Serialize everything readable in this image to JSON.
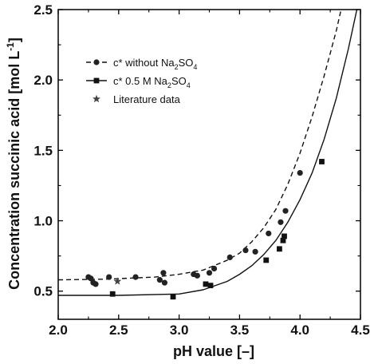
{
  "chart_data": {
    "type": "scatter",
    "xlabel": "pH value [–]",
    "ylabel": "Concentration succinic acid [mol L",
    "ylabel_sup": "-1",
    "ylabel_end": "]",
    "xlim": [
      2.0,
      4.5
    ],
    "ylim": [
      0.3,
      2.5
    ],
    "xticks": [
      "2.0",
      "2.5",
      "3.0",
      "3.5",
      "4.0",
      "4.5"
    ],
    "yticks": [
      "0.5",
      "1.0",
      "1.5",
      "2.0",
      "2.5"
    ],
    "legend_position": "top-left",
    "legend": [
      {
        "pre": "c* without Na",
        "sub1": "2",
        "mid": "SO",
        "sub2": "4"
      },
      {
        "pre": "c* 0.5 M Na",
        "sub1": "2",
        "mid": "SO",
        "sub2": "4"
      },
      {
        "pre": "Literature data",
        "sub1": "",
        "mid": "",
        "sub2": ""
      }
    ],
    "series": [
      {
        "marker": "circle",
        "line": "dashed",
        "points": [
          [
            2.25,
            0.6
          ],
          [
            2.27,
            0.59
          ],
          [
            2.29,
            0.56
          ],
          [
            2.31,
            0.55
          ],
          [
            2.42,
            0.6
          ],
          [
            2.64,
            0.6
          ],
          [
            2.84,
            0.58
          ],
          [
            2.87,
            0.63
          ],
          [
            2.88,
            0.56
          ],
          [
            3.12,
            0.62
          ],
          [
            3.15,
            0.61
          ],
          [
            3.25,
            0.63
          ],
          [
            3.29,
            0.66
          ],
          [
            3.42,
            0.74
          ],
          [
            3.55,
            0.79
          ],
          [
            3.63,
            0.78
          ],
          [
            3.74,
            0.91
          ],
          [
            3.84,
            0.99
          ],
          [
            3.88,
            1.07
          ],
          [
            4.0,
            1.34
          ]
        ],
        "curve": [
          [
            2.0,
            0.58
          ],
          [
            2.4,
            0.585
          ],
          [
            2.8,
            0.6
          ],
          [
            3.0,
            0.62
          ],
          [
            3.2,
            0.65
          ],
          [
            3.4,
            0.72
          ],
          [
            3.5,
            0.77
          ],
          [
            3.6,
            0.85
          ],
          [
            3.7,
            0.95
          ],
          [
            3.8,
            1.08
          ],
          [
            3.9,
            1.26
          ],
          [
            4.0,
            1.48
          ],
          [
            4.1,
            1.74
          ],
          [
            4.2,
            2.03
          ],
          [
            4.3,
            2.35
          ],
          [
            4.34,
            2.5
          ]
        ]
      },
      {
        "marker": "square",
        "line": "solid",
        "points": [
          [
            2.45,
            0.48
          ],
          [
            2.95,
            0.46
          ],
          [
            3.22,
            0.55
          ],
          [
            3.26,
            0.54
          ],
          [
            3.72,
            0.72
          ],
          [
            3.83,
            0.8
          ],
          [
            3.86,
            0.86
          ],
          [
            3.87,
            0.89
          ],
          [
            4.18,
            1.42
          ]
        ],
        "curve": [
          [
            2.0,
            0.47
          ],
          [
            2.5,
            0.47
          ],
          [
            3.0,
            0.48
          ],
          [
            3.2,
            0.51
          ],
          [
            3.4,
            0.57
          ],
          [
            3.5,
            0.62
          ],
          [
            3.6,
            0.68
          ],
          [
            3.7,
            0.76
          ],
          [
            3.8,
            0.86
          ],
          [
            3.9,
            0.99
          ],
          [
            4.0,
            1.15
          ],
          [
            4.1,
            1.34
          ],
          [
            4.2,
            1.58
          ],
          [
            4.3,
            1.87
          ],
          [
            4.4,
            2.22
          ],
          [
            4.47,
            2.5
          ]
        ]
      },
      {
        "marker": "star",
        "line": "none",
        "points": [
          [
            2.49,
            0.57
          ]
        ]
      }
    ]
  }
}
